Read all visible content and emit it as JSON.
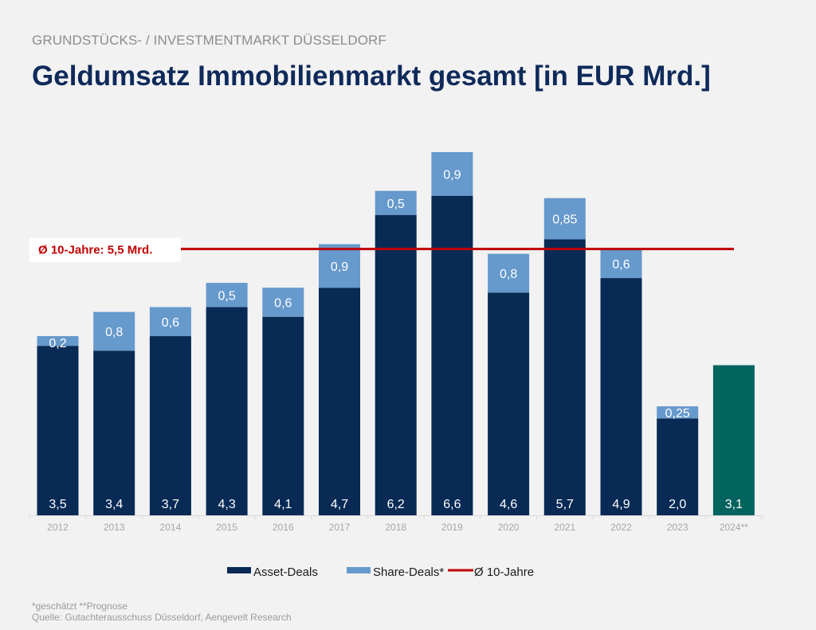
{
  "header": {
    "subtitle": "GRUNDSTÜCKS- / INVESTMENTMARKT DÜSSELDORF",
    "title": "Geldumsatz Immobilienmarkt gesamt [in EUR Mrd.]"
  },
  "chart_data": {
    "type": "bar",
    "stacked": true,
    "title": "Geldumsatz Immobilienmarkt gesamt [in EUR Mrd.]",
    "xlabel": "",
    "ylabel": "",
    "ylim": [
      0,
      7.5
    ],
    "grid": false,
    "legend_position": "bottom",
    "categories": [
      "2012",
      "2013",
      "2014",
      "2015",
      "2016",
      "2017",
      "2018",
      "2019",
      "2020",
      "2021",
      "2022",
      "2023",
      "2024**"
    ],
    "series": [
      {
        "name": "Asset-Deals",
        "color": "#082a55",
        "values": [
          3.5,
          3.4,
          3.7,
          4.3,
          4.1,
          4.7,
          6.2,
          6.6,
          4.6,
          5.7,
          4.9,
          2.0,
          null
        ],
        "labels": [
          "3,5",
          "3,4",
          "3,7",
          "4,3",
          "4,1",
          "4,7",
          "6,2",
          "6,6",
          "4,6",
          "5,7",
          "4,9",
          "2,0",
          ""
        ]
      },
      {
        "name": "Share-Deals*",
        "color": "#6699cc",
        "values": [
          0.2,
          0.8,
          0.6,
          0.5,
          0.6,
          0.9,
          0.5,
          0.9,
          0.8,
          0.85,
          0.6,
          0.25,
          null
        ],
        "labels": [
          "0,2",
          "0,8",
          "0,6",
          "0,5",
          "0,6",
          "0,9",
          "0,5",
          "0,9",
          "0,8",
          "0,85",
          "0,6",
          "0,25",
          ""
        ]
      },
      {
        "name": "Prognose",
        "color": "#03635e",
        "values": [
          null,
          null,
          null,
          null,
          null,
          null,
          null,
          null,
          null,
          null,
          null,
          null,
          3.1
        ],
        "labels": [
          "",
          "",
          "",
          "",
          "",
          "",
          "",
          "",
          "",
          "",
          "",
          "",
          "3,1"
        ]
      }
    ],
    "reference_line": {
      "name": "Ø 10-Jahre",
      "value": 5.5,
      "color": "#c00000",
      "label": "Ø 10-Jahre: 5,5 Mrd."
    },
    "legend": [
      {
        "name": "Asset-Deals",
        "color": "#082a55",
        "kind": "box"
      },
      {
        "name": "Share-Deals*",
        "color": "#6699cc",
        "kind": "box"
      },
      {
        "name": "Ø 10-Jahre",
        "color": "#c00000",
        "kind": "line"
      }
    ]
  },
  "footnotes": {
    "line1": "*geschätzt **Prognose",
    "line2": "Quelle: Gutachterausschuss Düsseldorf, Aengevelt Research"
  }
}
